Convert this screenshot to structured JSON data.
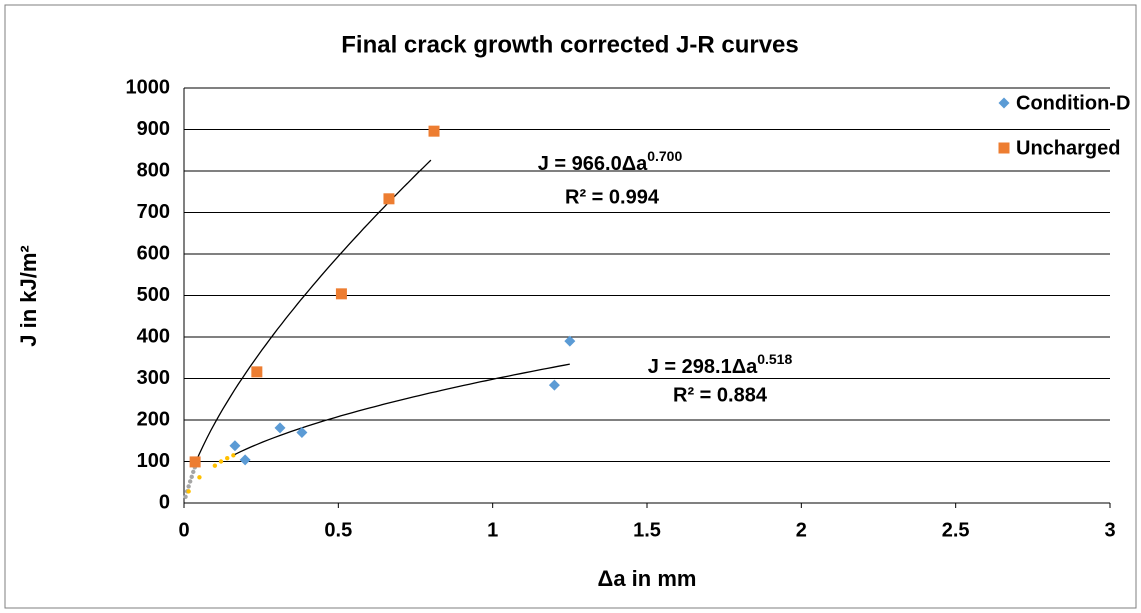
{
  "chart_data": {
    "type": "scatter",
    "title": "Final crack growth corrected  J-R curves",
    "x_label": "Δa in mm",
    "y_label": "J in kJ/m²",
    "xlim": [
      0,
      3
    ],
    "xticks": [
      0,
      0.5,
      1,
      1.5,
      2,
      2.5,
      3
    ],
    "ylim": [
      0,
      1000
    ],
    "yticks": [
      0,
      100,
      200,
      300,
      400,
      500,
      600,
      700,
      800,
      900,
      1000
    ],
    "grid": true,
    "legend": "top-right",
    "series": [
      {
        "name": "Condition-D",
        "color": "#5b9bd5",
        "marker": "diamond",
        "x": [
          0.165,
          0.198,
          0.311,
          0.382,
          1.2,
          1.25
        ],
        "values": [
          138,
          104,
          181,
          170,
          284,
          390
        ]
      },
      {
        "name": "Uncharged",
        "color": "#ed7d31",
        "marker": "square",
        "x": [
          0.036,
          0.236,
          0.51,
          0.664,
          0.81
        ],
        "values": [
          99,
          316,
          504,
          733,
          896
        ]
      }
    ],
    "guides": [
      {
        "color": "#a5a5a5",
        "x": [
          0.005,
          0.01,
          0.015,
          0.02,
          0.025,
          0.03,
          0.035
        ],
        "values": [
          15,
          28,
          40,
          52,
          63,
          75,
          86
        ]
      },
      {
        "color": "#ffc000",
        "x": [
          0.015,
          0.05,
          0.1,
          0.12,
          0.14,
          0.16
        ],
        "values": [
          28,
          62,
          90,
          100,
          108,
          115
        ]
      }
    ],
    "trendlines": [
      {
        "coefficient": 966.0,
        "exponent": 0.7,
        "xrange": [
          0.036,
          0.8
        ],
        "color": "#000000",
        "label": "J = 966.0Δa",
        "label_sup": "0.700",
        "r2_label": "R² = 0.994"
      },
      {
        "coefficient": 298.1,
        "exponent": 0.518,
        "xrange": [
          0.165,
          1.25
        ],
        "color": "#000000",
        "label": "J = 298.1Δa",
        "label_sup": "0.518",
        "r2_label": "R² = 0.884"
      }
    ]
  }
}
